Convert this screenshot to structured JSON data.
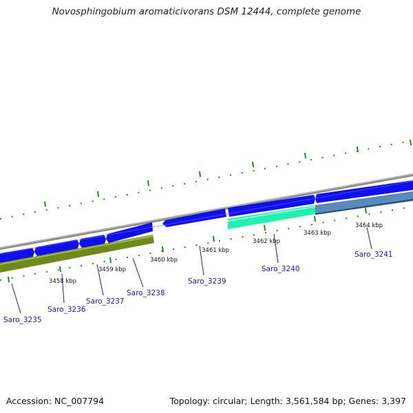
{
  "title": "Novosphingobium aromaticivorans DSM 12444, complete genome",
  "footer": {
    "accession": "Accession: NC_007794",
    "summary": "Topology: circular; Length: 3,561,584 bp; Genes: 3,397"
  },
  "colors": {
    "backbone": "#8a8a8a",
    "forward_cds": "#1010ee",
    "reverse_olive": "#6e8a1a",
    "highlight_green": "#22f0b0",
    "highlight_steel": "#5a8ab8",
    "tick": "#1a8a1a",
    "label": "#1a1aa8"
  },
  "kbp_labels": [
    "3458 kbp",
    "3459 kbp",
    "3460 kbp",
    "3461 kbp",
    "3462 kbp",
    "3463 kbp",
    "3464 kbp"
  ],
  "genes": [
    "Saro_3235",
    "Saro_3236",
    "Saro_3237",
    "Saro_3238",
    "Saro_3239",
    "Saro_3240",
    "Saro_3241"
  ]
}
